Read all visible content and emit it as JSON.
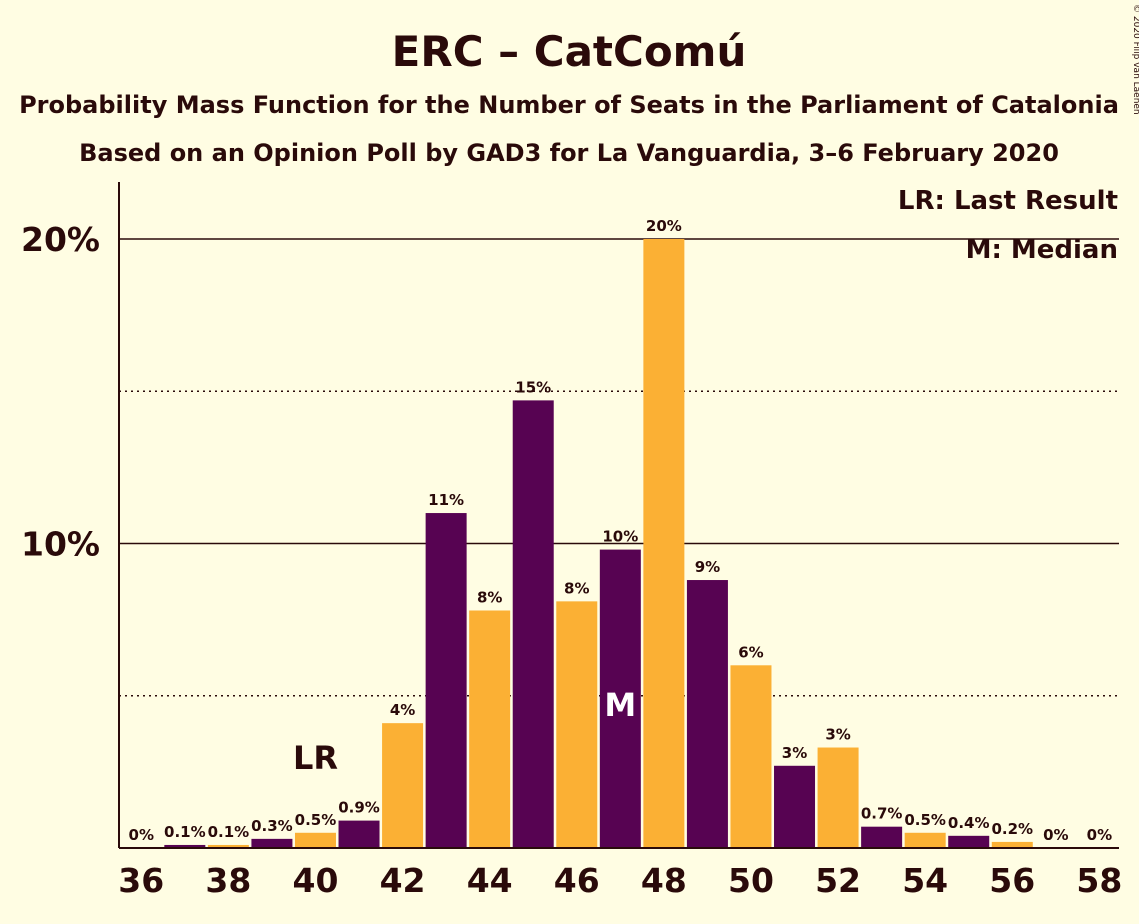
{
  "chart_data": {
    "type": "bar",
    "title": "ERC – CatComú",
    "subtitle1": "Probability Mass Function for the Number of Seats in the Parliament of Catalonia",
    "subtitle2": "Based on an Opinion Poll by GAD3 for La Vanguardia, 3–6 February 2020",
    "copyright": "© 2020 Filip van Laenen",
    "legend": {
      "last_result": "LR: Last Result",
      "median": "M: Median",
      "placement": "top-right"
    },
    "xlabel": "",
    "ylabel": "",
    "ylim": [
      0,
      21
    ],
    "yticks": [
      {
        "value": 10,
        "label": "10%",
        "style": "solid"
      },
      {
        "value": 20,
        "label": "20%",
        "style": "solid"
      }
    ],
    "ygrid_minor": [
      5,
      15
    ],
    "xticks": [
      "36",
      "38",
      "40",
      "42",
      "44",
      "46",
      "48",
      "50",
      "52",
      "54",
      "56",
      "58"
    ],
    "categories": [
      36,
      37,
      38,
      39,
      40,
      41,
      42,
      43,
      44,
      45,
      46,
      47,
      48,
      49,
      50,
      51,
      52,
      53,
      54,
      55,
      56,
      57,
      58
    ],
    "values": [
      0,
      0.1,
      0.1,
      0.3,
      0.5,
      0.9,
      4.1,
      11.0,
      7.8,
      14.7,
      8.1,
      9.8,
      20.0,
      8.8,
      6.0,
      2.7,
      3.3,
      0.7,
      0.5,
      0.4,
      0.2,
      0,
      0
    ],
    "labels": [
      "0%",
      "0.1%",
      "0.1%",
      "0.3%",
      "0.5%",
      "0.9%",
      "4%",
      "11%",
      "8%",
      "15%",
      "8%",
      "10%",
      "20%",
      "9%",
      "6%",
      "3%",
      "3%",
      "0.7%",
      "0.5%",
      "0.4%",
      "0.2%",
      "0%",
      "0%"
    ],
    "last_result_seat": 40,
    "last_result_marker": "LR",
    "median_seat": 47,
    "median_marker": "M",
    "colors": {
      "odd": "#570352",
      "even": "#FBB034",
      "background": "#FFFDE3",
      "text": "#2a0a0a"
    }
  }
}
